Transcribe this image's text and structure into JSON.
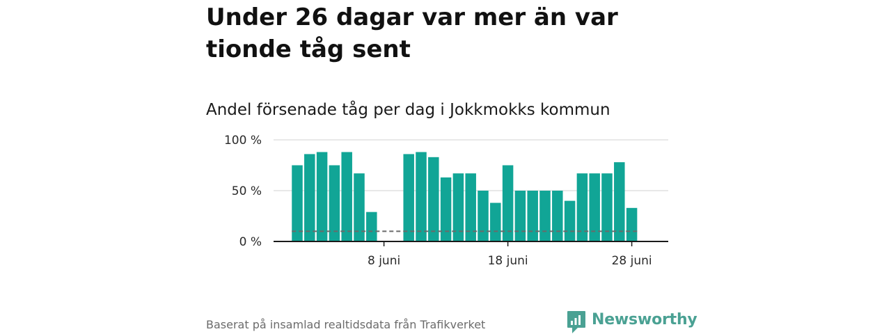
{
  "title": "Under 26 dagar var mer än var tionde tåg sent",
  "subtitle": "Andel försenade tåg per dag i Jokkmokks kommun",
  "source": "Baserat på insamlad realtidsdata från Trafikverket",
  "logo": {
    "text": "Newsworthy",
    "color": "#4aa193"
  },
  "colors": {
    "bar": "#11a596",
    "grid": "#d9d9d9",
    "axis": "#1a1a1a",
    "reference_line": "#6a6a6a"
  },
  "chart_data": {
    "type": "bar",
    "title": "Andel försenade tåg per dag i Jokkmokks kommun",
    "xlabel": "",
    "ylabel": "",
    "x_unit": "day of June",
    "x": [
      1,
      2,
      3,
      4,
      5,
      6,
      7,
      8,
      9,
      10,
      11,
      12,
      13,
      14,
      15,
      16,
      17,
      18,
      19,
      20,
      21,
      22,
      23,
      24,
      25,
      26,
      27,
      28,
      29
    ],
    "values": [
      75,
      86,
      88,
      75,
      88,
      67,
      29,
      null,
      null,
      86,
      88,
      83,
      63,
      67,
      67,
      50,
      38,
      75,
      50,
      50,
      50,
      50,
      40,
      67,
      67,
      67,
      78,
      33,
      null
    ],
    "ylim": [
      0,
      100
    ],
    "yticks": [
      0,
      50,
      100
    ],
    "ytick_labels": [
      "0 %",
      "50 %",
      "100 %"
    ],
    "xticks": [
      8,
      18,
      28
    ],
    "xtick_labels": [
      "8 juni",
      "18 juni",
      "28 juni"
    ],
    "reference_line": {
      "y": 10,
      "style": "dashed"
    },
    "grid": true
  }
}
